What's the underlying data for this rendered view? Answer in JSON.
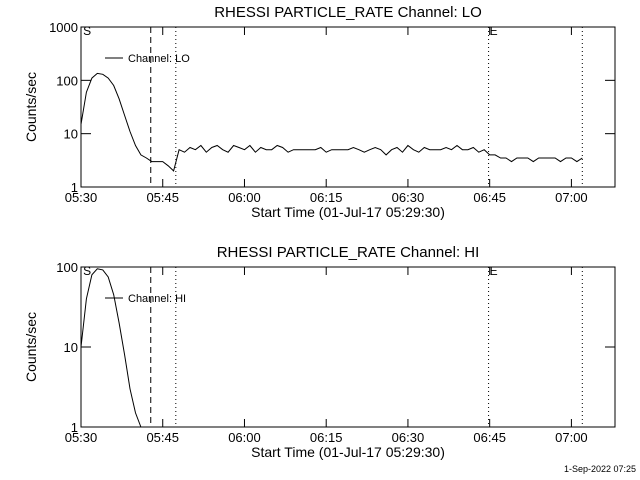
{
  "chart_data": [
    {
      "type": "line",
      "title": "RHESSI PARTICLE_RATE Channel: LO",
      "xlabel": "Start Time (01-Jul-17 05:29:30)",
      "ylabel": "Counts/sec",
      "log_y": true,
      "xlim": [
        330,
        428
      ],
      "ylim": [
        1,
        1000
      ],
      "yticks": [
        1,
        10,
        100,
        1000
      ],
      "xticks": [
        {
          "value": 330,
          "label": "05:30"
        },
        {
          "value": 345,
          "label": "05:45"
        },
        {
          "value": 360,
          "label": "06:00"
        },
        {
          "value": 375,
          "label": "06:15"
        },
        {
          "value": 390,
          "label": "06:30"
        },
        {
          "value": 405,
          "label": "06:45"
        },
        {
          "value": 420,
          "label": "07:00"
        }
      ],
      "event_lines": [
        {
          "x": 342.8,
          "style": "dashed"
        },
        {
          "x": 347.4,
          "style": "dotted"
        },
        {
          "x": 404.8,
          "style": "dotted"
        },
        {
          "x": 422,
          "style": "dotted"
        }
      ],
      "annotations": [
        {
          "text": "S",
          "x": 330.4
        },
        {
          "text": "E",
          "x": 405
        }
      ],
      "legend": "upper left",
      "x": [
        330,
        331,
        332,
        333,
        334,
        335,
        336,
        337,
        338,
        339,
        340,
        341,
        342,
        343,
        344,
        345,
        346,
        347,
        348,
        349,
        350,
        351,
        352,
        353,
        354,
        355,
        356,
        357,
        358,
        359,
        360,
        361,
        362,
        363,
        364,
        365,
        366,
        367,
        368,
        369,
        370,
        371,
        372,
        373,
        374,
        375,
        376,
        377,
        378,
        379,
        380,
        381,
        382,
        383,
        384,
        385,
        386,
        387,
        388,
        389,
        390,
        391,
        392,
        393,
        394,
        395,
        396,
        397,
        398,
        399,
        400,
        401,
        402,
        403,
        404,
        405,
        406,
        407,
        408,
        409,
        410,
        411,
        412,
        413,
        414,
        415,
        416,
        417,
        418,
        419,
        420,
        421,
        422
      ],
      "series": [
        {
          "name": "Channel: LO",
          "color": "#000000",
          "values": [
            15,
            60,
            110,
            135,
            130,
            110,
            80,
            45,
            22,
            11,
            6,
            4,
            3.5,
            3,
            3,
            3,
            2.5,
            2,
            5,
            4.5,
            5.5,
            5,
            6,
            4.5,
            5.5,
            6,
            5,
            4.5,
            6,
            5.5,
            5,
            6,
            4.5,
            5.5,
            5,
            5,
            6,
            5.5,
            4.5,
            5,
            5,
            5,
            5,
            5,
            5.5,
            4.5,
            5,
            5,
            5,
            5,
            5.5,
            5,
            4.5,
            5,
            5.5,
            5,
            4,
            5,
            5.5,
            4.5,
            6,
            5,
            4.5,
            5.5,
            5,
            5,
            5,
            5.5,
            5,
            6,
            5,
            5,
            5.5,
            4.5,
            5,
            4,
            4,
            3.5,
            3.5,
            3,
            3.5,
            3.5,
            3.5,
            3,
            3.5,
            3.5,
            3.5,
            3.5,
            3,
            3.5,
            3.5,
            3,
            3.5
          ]
        }
      ]
    },
    {
      "type": "line",
      "title": "RHESSI PARTICLE_RATE Channel: HI",
      "xlabel": "Start Time (01-Jul-17 05:29:30)",
      "ylabel": "Counts/sec",
      "log_y": true,
      "xlim": [
        330,
        428
      ],
      "ylim": [
        1,
        100
      ],
      "yticks": [
        1,
        10,
        100
      ],
      "xticks": [
        {
          "value": 330,
          "label": "05:30"
        },
        {
          "value": 345,
          "label": "05:45"
        },
        {
          "value": 360,
          "label": "06:00"
        },
        {
          "value": 375,
          "label": "06:15"
        },
        {
          "value": 390,
          "label": "06:30"
        },
        {
          "value": 405,
          "label": "06:45"
        },
        {
          "value": 420,
          "label": "07:00"
        }
      ],
      "event_lines": [
        {
          "x": 342.8,
          "style": "dashed"
        },
        {
          "x": 347.4,
          "style": "dotted"
        },
        {
          "x": 404.8,
          "style": "dotted"
        },
        {
          "x": 422,
          "style": "dotted"
        }
      ],
      "annotations": [
        {
          "text": "S",
          "x": 330.4
        },
        {
          "text": "E",
          "x": 405
        }
      ],
      "legend": "upper left",
      "x": [
        330,
        331,
        332,
        333,
        334,
        335,
        336,
        337,
        338,
        339,
        340,
        341
      ],
      "series": [
        {
          "name": "Channel: HI",
          "color": "#000000",
          "values": [
            10,
            40,
            80,
            95,
            92,
            75,
            45,
            20,
            8,
            3,
            1.5,
            1
          ]
        }
      ]
    }
  ],
  "footer": "1-Sep-2022 07:25"
}
